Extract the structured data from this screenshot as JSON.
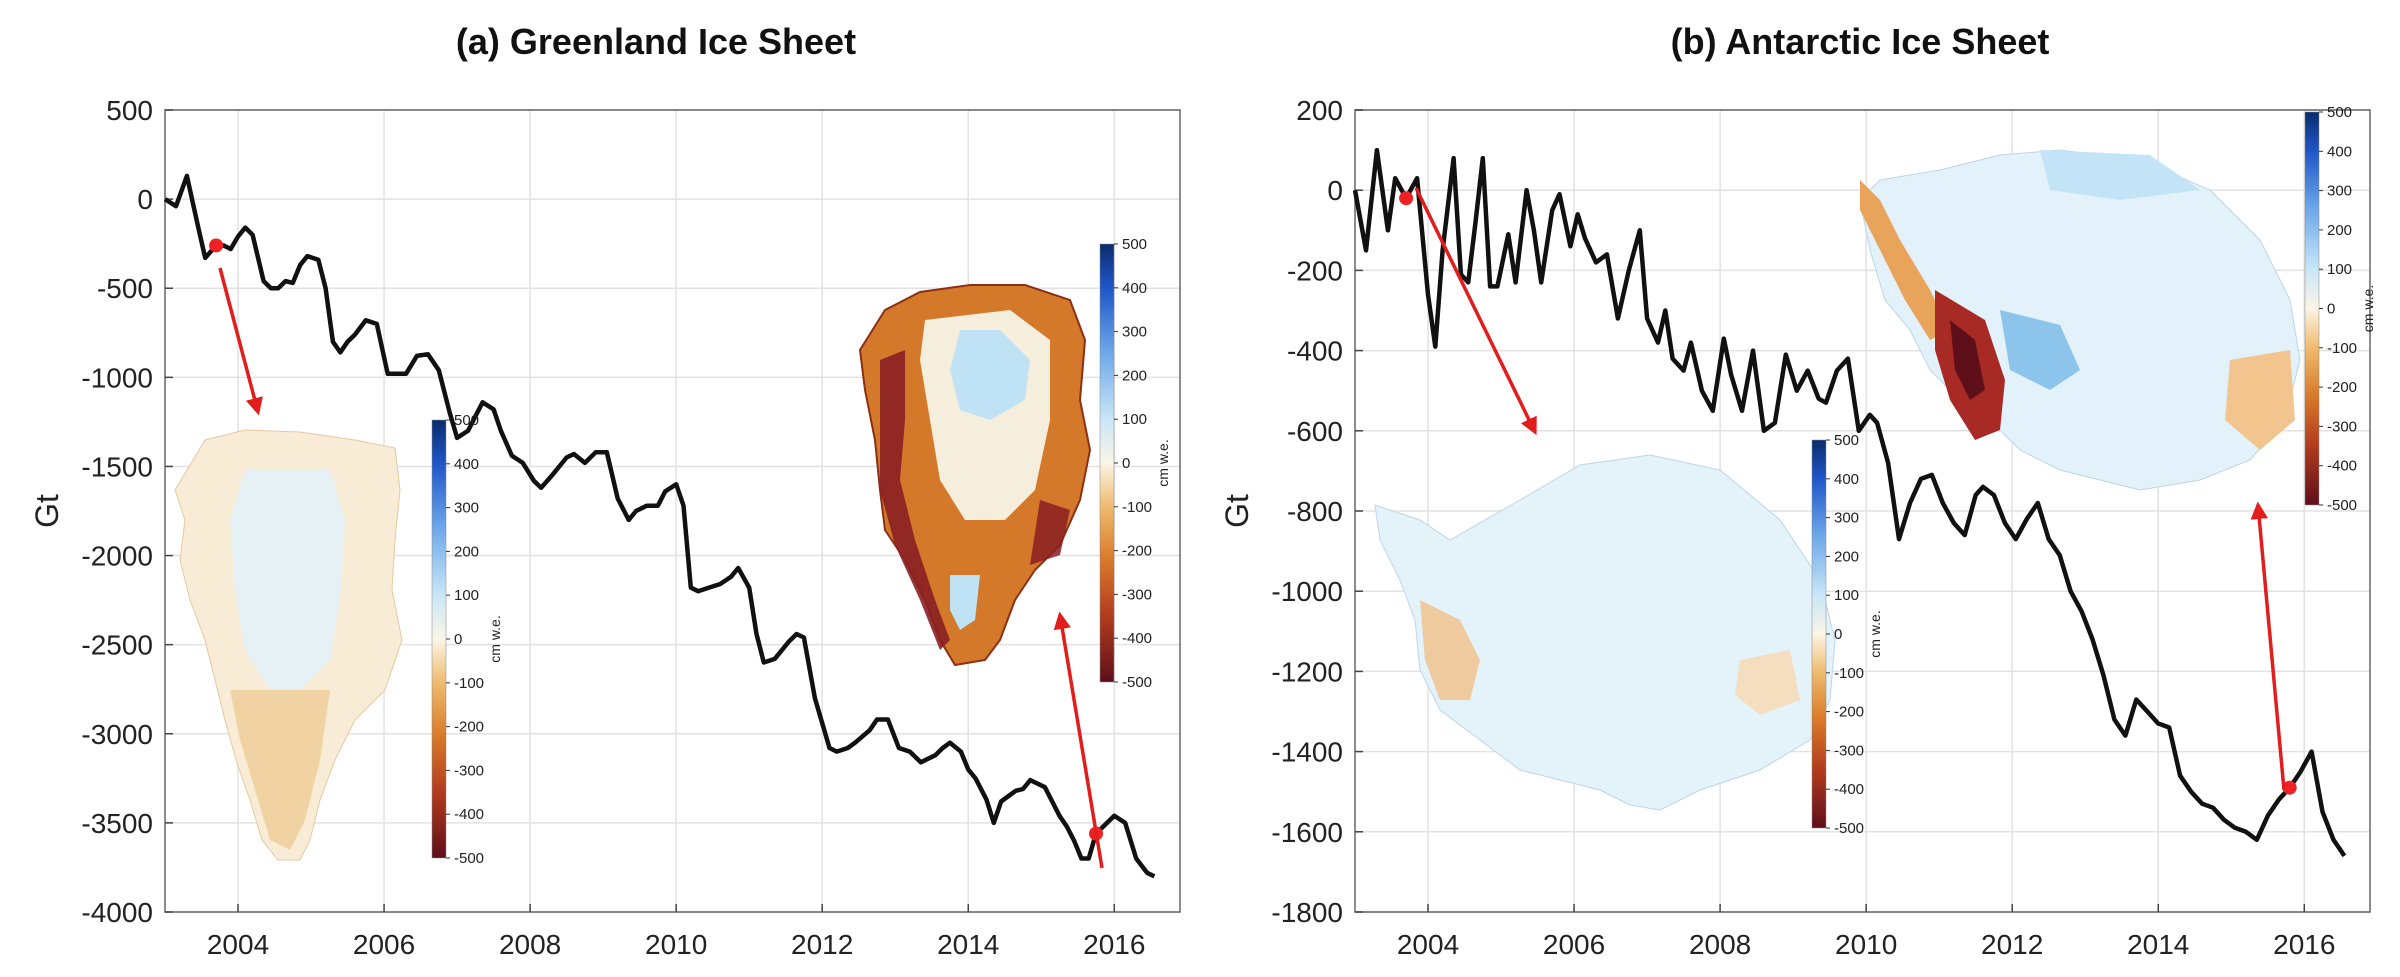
{
  "chart_data": [
    {
      "type": "line",
      "title": "(a) Greenland Ice Sheet",
      "xlabel": "",
      "ylabel": "Gt",
      "xlim": [
        2003.0,
        2016.9
      ],
      "ylim": [
        -4000,
        500
      ],
      "xticks": [
        2004,
        2006,
        2008,
        2010,
        2012,
        2014,
        2016
      ],
      "yticks": [
        500,
        0,
        -500,
        -1000,
        -1500,
        -2000,
        -2500,
        -3000,
        -3500,
        -4000
      ],
      "grid": true,
      "series": [
        {
          "x": [
            2003.0,
            2003.15,
            2003.3,
            2003.45,
            2003.55,
            2003.7,
            2003.8,
            2003.9,
            2004.0,
            2004.1,
            2004.2,
            2004.35,
            2004.45,
            2004.55,
            2004.65,
            2004.75,
            2004.85,
            2004.95,
            2005.1,
            2005.2,
            2005.3,
            2005.4,
            2005.5,
            2005.6,
            2005.75,
            2005.9,
            2006.05,
            2006.15,
            2006.3,
            2006.45,
            2006.6,
            2006.75,
            2006.9,
            2007.0,
            2007.15,
            2007.25,
            2007.35,
            2007.5,
            2007.6,
            2007.75,
            2007.9,
            2008.05,
            2008.15,
            2008.3,
            2008.5,
            2008.6,
            2008.75,
            2008.9,
            2009.05,
            2009.2,
            2009.35,
            2009.45,
            2009.6,
            2009.75,
            2009.85,
            2010.0,
            2010.1,
            2010.2,
            2010.3,
            2010.45,
            2010.6,
            2010.75,
            2010.85,
            2011.0,
            2011.1,
            2011.2,
            2011.35,
            2011.55,
            2011.65,
            2011.75,
            2011.9,
            2012.1,
            2012.2,
            2012.35,
            2012.45,
            2012.65,
            2012.75,
            2012.9,
            2013.05,
            2013.2,
            2013.35,
            2013.55,
            2013.65,
            2013.75,
            2013.9,
            2014.0,
            2014.1,
            2014.25,
            2014.35,
            2014.45,
            2014.65,
            2014.75,
            2014.85,
            2015.05,
            2015.15,
            2015.25,
            2015.35,
            2015.45,
            2015.55,
            2015.65,
            2015.75,
            2015.85,
            2016.0,
            2016.15,
            2016.3,
            2016.45,
            2016.55
          ],
          "values": [
            0,
            -40,
            130,
            -150,
            -330,
            -260,
            -260,
            -280,
            -210,
            -160,
            -200,
            -460,
            -500,
            -500,
            -460,
            -470,
            -370,
            -320,
            -340,
            -500,
            -800,
            -860,
            -800,
            -760,
            -680,
            -700,
            -980,
            -980,
            -980,
            -880,
            -870,
            -960,
            -1200,
            -1340,
            -1300,
            -1220,
            -1140,
            -1180,
            -1300,
            -1440,
            -1480,
            -1580,
            -1620,
            -1550,
            -1450,
            -1430,
            -1480,
            -1420,
            -1420,
            -1680,
            -1800,
            -1750,
            -1720,
            -1720,
            -1640,
            -1600,
            -1720,
            -2180,
            -2200,
            -2180,
            -2160,
            -2120,
            -2070,
            -2180,
            -2440,
            -2600,
            -2580,
            -2480,
            -2440,
            -2460,
            -2800,
            -3080,
            -3100,
            -3080,
            -3050,
            -2980,
            -2920,
            -2920,
            -3080,
            -3100,
            -3160,
            -3120,
            -3080,
            -3050,
            -3100,
            -3200,
            -3250,
            -3370,
            -3500,
            -3380,
            -3320,
            -3310,
            -3260,
            -3300,
            -3380,
            -3460,
            -3520,
            -3600,
            -3700,
            -3700,
            -3560,
            -3520,
            -3460,
            -3500,
            -3700,
            -3780,
            -3800
          ]
        }
      ],
      "colorbar": {
        "ticks": [
          500,
          400,
          300,
          200,
          100,
          0,
          -100,
          -200,
          -300,
          -400,
          -500
        ],
        "label": "cm w.e."
      }
    },
    {
      "type": "line",
      "title": "(b) Antarctic Ice Sheet",
      "xlabel": "",
      "ylabel": "Gt",
      "xlim": [
        2003.0,
        2016.9
      ],
      "ylim": [
        -1800,
        200
      ],
      "xticks": [
        2004,
        2006,
        2008,
        2010,
        2012,
        2014,
        2016
      ],
      "yticks": [
        200,
        0,
        -200,
        -400,
        -600,
        -800,
        -1000,
        -1200,
        -1400,
        -1600,
        -1800
      ],
      "grid": true,
      "series": [
        {
          "x": [
            2003.0,
            2003.15,
            2003.3,
            2003.45,
            2003.55,
            2003.7,
            2003.85,
            2004.0,
            2004.1,
            2004.2,
            2004.35,
            2004.45,
            2004.55,
            2004.65,
            2004.75,
            2004.85,
            2004.95,
            2005.1,
            2005.2,
            2005.35,
            2005.45,
            2005.55,
            2005.7,
            2005.8,
            2005.95,
            2006.05,
            2006.15,
            2006.3,
            2006.45,
            2006.6,
            2006.75,
            2006.9,
            2007.0,
            2007.15,
            2007.25,
            2007.35,
            2007.5,
            2007.6,
            2007.75,
            2007.9,
            2008.05,
            2008.15,
            2008.3,
            2008.45,
            2008.6,
            2008.75,
            2008.9,
            2009.05,
            2009.2,
            2009.35,
            2009.45,
            2009.6,
            2009.75,
            2009.9,
            2010.05,
            2010.15,
            2010.3,
            2010.45,
            2010.6,
            2010.75,
            2010.9,
            2011.05,
            2011.2,
            2011.35,
            2011.5,
            2011.6,
            2011.75,
            2011.9,
            2012.05,
            2012.2,
            2012.35,
            2012.5,
            2012.65,
            2012.8,
            2012.95,
            2013.1,
            2013.25,
            2013.4,
            2013.55,
            2013.7,
            2013.85,
            2014.0,
            2014.15,
            2014.3,
            2014.45,
            2014.6,
            2014.75,
            2014.9,
            2015.05,
            2015.2,
            2015.35,
            2015.5,
            2015.65,
            2015.8,
            2015.95,
            2016.1,
            2016.25,
            2016.4,
            2016.55
          ],
          "values": [
            0,
            -150,
            100,
            -100,
            30,
            -20,
            30,
            -260,
            -390,
            -150,
            80,
            -210,
            -230,
            -80,
            80,
            -240,
            -240,
            -110,
            -230,
            0,
            -100,
            -230,
            -50,
            -10,
            -140,
            -60,
            -120,
            -180,
            -160,
            -320,
            -200,
            -100,
            -320,
            -380,
            -300,
            -420,
            -450,
            -380,
            -500,
            -550,
            -370,
            -460,
            -550,
            -400,
            -600,
            -580,
            -410,
            -500,
            -450,
            -520,
            -530,
            -450,
            -420,
            -600,
            -560,
            -580,
            -680,
            -870,
            -780,
            -720,
            -710,
            -780,
            -830,
            -860,
            -760,
            -740,
            -760,
            -830,
            -870,
            -820,
            -780,
            -870,
            -910,
            -1000,
            -1050,
            -1120,
            -1210,
            -1320,
            -1360,
            -1270,
            -1300,
            -1330,
            -1340,
            -1460,
            -1500,
            -1530,
            -1540,
            -1570,
            -1590,
            -1600,
            -1620,
            -1560,
            -1520,
            -1490,
            -1450,
            -1400,
            -1550,
            -1620,
            -1660
          ]
        }
      ],
      "colorbar": {
        "ticks": [
          500,
          400,
          300,
          200,
          100,
          0,
          -100,
          -200,
          -300,
          -400,
          -500
        ],
        "label": "cm w.e."
      }
    }
  ],
  "colors": {
    "line": "#111111",
    "marker": "#ee2222",
    "arrow": "#e11d1d",
    "grid": "#e2e2e2"
  }
}
